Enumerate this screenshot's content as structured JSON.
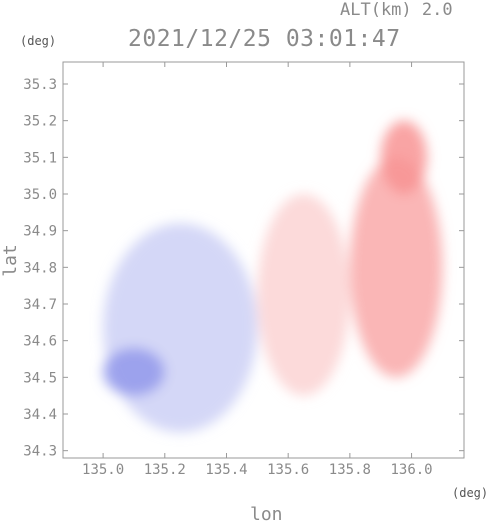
{
  "header": {
    "altitude_label": "ALT(km) 2.0",
    "timestamp": "2021/12/25 03:01:47"
  },
  "axes": {
    "y_unit": "(deg)",
    "x_unit": "(deg)",
    "y_label": "lat",
    "x_label": "lon"
  },
  "chart_data": {
    "type": "heatmap",
    "title": "2021/12/25 03:01:47",
    "xlabel": "lon",
    "ylabel": "lat",
    "xlim": [
      134.87,
      136.17
    ],
    "ylim": [
      34.28,
      35.36
    ],
    "x_ticks": [
      "135.0",
      "135.2",
      "135.4",
      "135.6",
      "135.8",
      "136.0"
    ],
    "y_ticks": [
      "34.3",
      "34.4",
      "34.5",
      "34.6",
      "34.7",
      "34.8",
      "34.9",
      "35.0",
      "35.1",
      "35.2",
      "35.3"
    ],
    "grid": false,
    "colors": {
      "negative": "#6f78e6",
      "neutral": "#ffffff",
      "positive": "#f57070"
    },
    "regions": [
      {
        "name": "west-blue-field",
        "lon": [
          135.0,
          135.5
        ],
        "lat": [
          34.35,
          34.92
        ],
        "value": -0.35
      },
      {
        "name": "west-blue-core",
        "lon": [
          135.0,
          135.2
        ],
        "lat": [
          34.45,
          34.58
        ],
        "value": -0.75
      },
      {
        "name": "central-light-red",
        "lon": [
          135.5,
          135.8
        ],
        "lat": [
          34.45,
          35.0
        ],
        "value": 0.3
      },
      {
        "name": "east-red-field",
        "lon": [
          135.8,
          136.1
        ],
        "lat": [
          34.5,
          35.1
        ],
        "value": 0.6
      },
      {
        "name": "northeast-red-spur",
        "lon": [
          135.9,
          136.05
        ],
        "lat": [
          35.0,
          35.2
        ],
        "value": 0.75
      }
    ]
  }
}
